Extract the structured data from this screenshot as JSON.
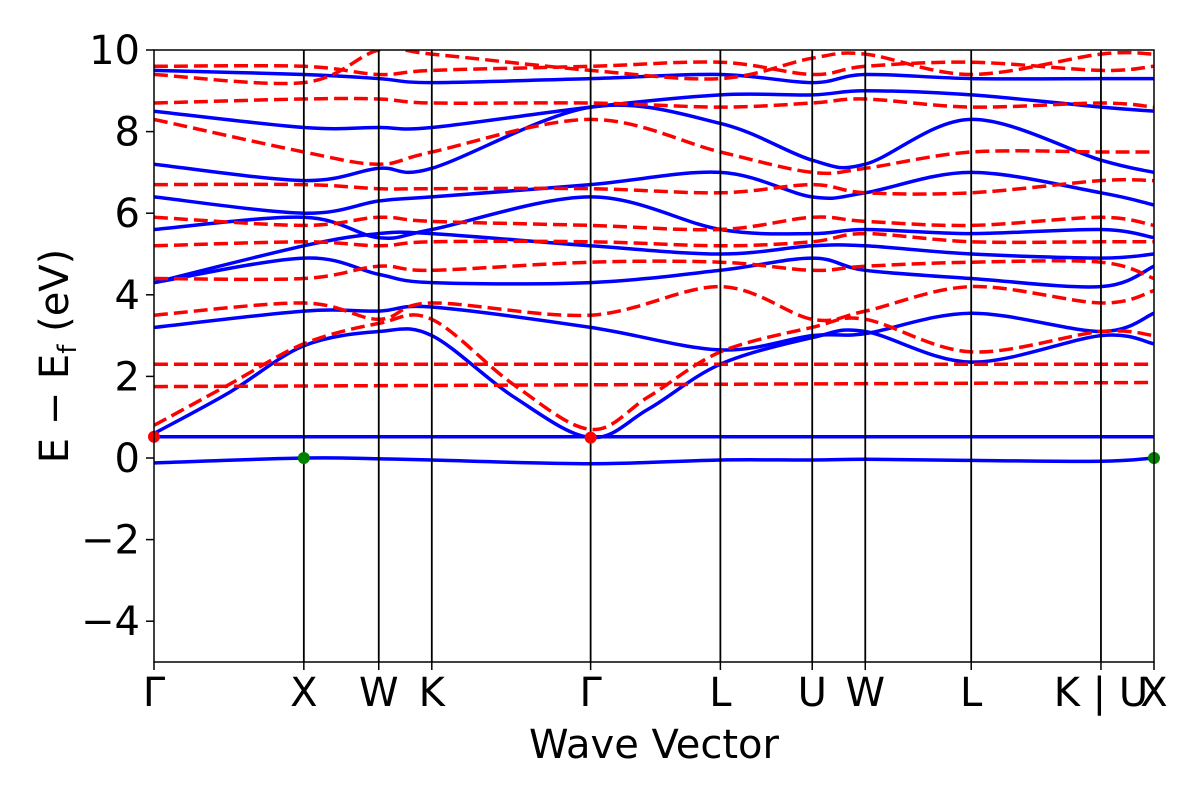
{
  "chart_data": {
    "type": "line",
    "xlabel": "Wave Vector",
    "ylabel": "E − E",
    "ylabel_sub": "f",
    "ylabel_unit": " (eV)",
    "ylim": [
      -5,
      10
    ],
    "yticks": [
      {
        "value": -4,
        "label": "−4"
      },
      {
        "value": -2,
        "label": "−2"
      },
      {
        "value": 0,
        "label": "0"
      },
      {
        "value": 2,
        "label": "2"
      },
      {
        "value": 4,
        "label": "4"
      },
      {
        "value": 6,
        "label": "6"
      },
      {
        "value": 8,
        "label": "8"
      },
      {
        "value": 10,
        "label": "10"
      }
    ],
    "kpoints": [
      {
        "label": "Γ",
        "x": 0.0
      },
      {
        "label": "X",
        "x": 1.0
      },
      {
        "label": "W",
        "x": 1.5
      },
      {
        "label": "K",
        "x": 1.854
      },
      {
        "label": "Γ",
        "x": 2.914
      },
      {
        "label": "L",
        "x": 3.78
      },
      {
        "label": "U",
        "x": 4.393
      },
      {
        "label": "W",
        "x": 4.747
      },
      {
        "label": "L",
        "x": 5.454
      },
      {
        "label": "K | U",
        "x": 6.32
      },
      {
        "label": "X",
        "x": 6.674
      }
    ],
    "xlim": [
      0,
      6.674
    ],
    "colors": {
      "spin_up": "#0000ff",
      "spin_down": "#ff0000",
      "vbm": "#008000",
      "cbm": "#ff0000",
      "kline": "#000000"
    },
    "series": [
      {
        "style": "solid",
        "color": "#0000ff",
        "points": [
          [
            0,
            -0.12
          ],
          [
            1.0,
            0.0
          ],
          [
            1.5,
            -0.02
          ],
          [
            1.854,
            -0.05
          ],
          [
            2.914,
            -0.14
          ],
          [
            3.78,
            -0.05
          ],
          [
            4.393,
            -0.05
          ],
          [
            4.747,
            -0.03
          ],
          [
            5.454,
            -0.06
          ],
          [
            6.32,
            -0.08
          ],
          [
            6.674,
            0.0
          ]
        ]
      },
      {
        "style": "solid",
        "color": "#0000ff",
        "points": [
          [
            0,
            0.52
          ],
          [
            6.674,
            0.52
          ]
        ]
      },
      {
        "style": "solid",
        "color": "#0000ff",
        "points": [
          [
            0,
            0.6
          ],
          [
            0.5,
            1.6
          ],
          [
            1.0,
            2.75
          ],
          [
            1.5,
            3.1
          ],
          [
            1.854,
            3.0
          ],
          [
            2.4,
            1.5
          ],
          [
            2.914,
            0.5
          ],
          [
            3.3,
            1.2
          ],
          [
            3.78,
            2.3
          ],
          [
            4.393,
            2.95
          ],
          [
            4.747,
            3.1
          ],
          [
            5.454,
            2.35
          ],
          [
            6.32,
            3.0
          ],
          [
            6.674,
            2.8
          ]
        ]
      },
      {
        "style": "solid",
        "color": "#0000ff",
        "points": [
          [
            0,
            3.2
          ],
          [
            1.0,
            3.6
          ],
          [
            1.5,
            3.6
          ],
          [
            1.854,
            3.7
          ],
          [
            2.914,
            3.2
          ],
          [
            3.78,
            2.65
          ],
          [
            4.393,
            3.0
          ],
          [
            4.747,
            3.05
          ],
          [
            5.454,
            3.55
          ],
          [
            6.32,
            3.1
          ],
          [
            6.674,
            3.55
          ]
        ]
      },
      {
        "style": "solid",
        "color": "#0000ff",
        "points": [
          [
            0,
            4.3
          ],
          [
            1.0,
            4.9
          ],
          [
            1.5,
            4.5
          ],
          [
            1.854,
            4.3
          ],
          [
            2.914,
            4.3
          ],
          [
            3.78,
            4.6
          ],
          [
            4.393,
            4.9
          ],
          [
            4.747,
            4.6
          ],
          [
            5.454,
            4.4
          ],
          [
            6.32,
            4.2
          ],
          [
            6.674,
            4.7
          ]
        ]
      },
      {
        "style": "solid",
        "color": "#0000ff",
        "points": [
          [
            0,
            4.3
          ],
          [
            1.0,
            5.2
          ],
          [
            1.5,
            5.5
          ],
          [
            1.854,
            5.5
          ],
          [
            2.914,
            5.2
          ],
          [
            3.78,
            5.0
          ],
          [
            4.393,
            5.2
          ],
          [
            4.747,
            5.2
          ],
          [
            5.454,
            5.0
          ],
          [
            6.32,
            4.9
          ],
          [
            6.674,
            5.0
          ]
        ]
      },
      {
        "style": "solid",
        "color": "#0000ff",
        "points": [
          [
            0,
            5.6
          ],
          [
            1.0,
            5.9
          ],
          [
            1.5,
            5.4
          ],
          [
            1.854,
            5.6
          ],
          [
            2.914,
            6.4
          ],
          [
            3.78,
            5.6
          ],
          [
            4.393,
            5.5
          ],
          [
            4.747,
            5.6
          ],
          [
            5.454,
            5.5
          ],
          [
            6.32,
            5.6
          ],
          [
            6.674,
            5.4
          ]
        ]
      },
      {
        "style": "solid",
        "color": "#0000ff",
        "points": [
          [
            0,
            6.4
          ],
          [
            1.0,
            6.0
          ],
          [
            1.5,
            6.3
          ],
          [
            1.854,
            6.4
          ],
          [
            2.914,
            6.7
          ],
          [
            3.78,
            7.0
          ],
          [
            4.393,
            6.4
          ],
          [
            4.747,
            6.5
          ],
          [
            5.454,
            7.0
          ],
          [
            6.32,
            6.5
          ],
          [
            6.674,
            6.2
          ]
        ]
      },
      {
        "style": "solid",
        "color": "#0000ff",
        "points": [
          [
            0,
            7.2
          ],
          [
            1.0,
            6.8
          ],
          [
            1.5,
            7.1
          ],
          [
            1.854,
            7.1
          ],
          [
            2.914,
            8.6
          ],
          [
            3.78,
            8.2
          ],
          [
            4.393,
            7.3
          ],
          [
            4.747,
            7.2
          ],
          [
            5.454,
            8.3
          ],
          [
            6.32,
            7.3
          ],
          [
            6.674,
            7.0
          ]
        ]
      },
      {
        "style": "solid",
        "color": "#0000ff",
        "points": [
          [
            0,
            8.5
          ],
          [
            1.0,
            8.1
          ],
          [
            1.5,
            8.1
          ],
          [
            1.854,
            8.1
          ],
          [
            2.914,
            8.6
          ],
          [
            3.78,
            8.9
          ],
          [
            4.393,
            8.9
          ],
          [
            4.747,
            9.0
          ],
          [
            5.454,
            8.9
          ],
          [
            6.32,
            8.6
          ],
          [
            6.674,
            8.5
          ]
        ]
      },
      {
        "style": "solid",
        "color": "#0000ff",
        "points": [
          [
            0,
            9.5
          ],
          [
            1.0,
            9.4
          ],
          [
            1.5,
            9.3
          ],
          [
            1.854,
            9.2
          ],
          [
            2.914,
            9.3
          ],
          [
            3.78,
            9.4
          ],
          [
            4.393,
            9.2
          ],
          [
            4.747,
            9.4
          ],
          [
            5.454,
            9.3
          ],
          [
            6.32,
            9.3
          ],
          [
            6.674,
            9.3
          ]
        ]
      },
      {
        "style": "dashed",
        "color": "#ff0000",
        "points": [
          [
            0,
            0.8
          ],
          [
            0.5,
            1.8
          ],
          [
            1.0,
            2.8
          ],
          [
            1.5,
            3.3
          ],
          [
            1.854,
            3.4
          ],
          [
            2.4,
            1.8
          ],
          [
            2.914,
            0.7
          ],
          [
            3.3,
            1.5
          ],
          [
            3.78,
            2.6
          ],
          [
            4.393,
            3.2
          ],
          [
            4.747,
            3.4
          ],
          [
            5.454,
            2.6
          ],
          [
            6.32,
            3.1
          ],
          [
            6.674,
            3.0
          ]
        ]
      },
      {
        "style": "dashed",
        "color": "#ff0000",
        "points": [
          [
            0,
            1.75
          ],
          [
            6.674,
            1.85
          ]
        ]
      },
      {
        "style": "dashed",
        "color": "#ff0000",
        "points": [
          [
            0,
            2.3
          ],
          [
            6.674,
            2.3
          ]
        ]
      },
      {
        "style": "dashed",
        "color": "#ff0000",
        "points": [
          [
            0,
            3.5
          ],
          [
            1.0,
            3.8
          ],
          [
            1.5,
            3.4
          ],
          [
            1.854,
            3.8
          ],
          [
            2.914,
            3.5
          ],
          [
            3.78,
            4.2
          ],
          [
            4.393,
            3.4
          ],
          [
            4.747,
            3.6
          ],
          [
            5.454,
            4.2
          ],
          [
            6.32,
            3.8
          ],
          [
            6.674,
            4.1
          ]
        ]
      },
      {
        "style": "dashed",
        "color": "#ff0000",
        "points": [
          [
            0,
            4.4
          ],
          [
            1.0,
            4.4
          ],
          [
            1.5,
            4.7
          ],
          [
            1.854,
            4.6
          ],
          [
            2.914,
            4.8
          ],
          [
            3.78,
            4.8
          ],
          [
            4.393,
            4.6
          ],
          [
            4.747,
            4.7
          ],
          [
            5.454,
            4.8
          ],
          [
            6.32,
            4.8
          ],
          [
            6.674,
            4.4
          ]
        ]
      },
      {
        "style": "dashed",
        "color": "#ff0000",
        "points": [
          [
            0,
            5.2
          ],
          [
            1.0,
            5.3
          ],
          [
            1.5,
            5.2
          ],
          [
            1.854,
            5.3
          ],
          [
            2.914,
            5.3
          ],
          [
            3.78,
            5.2
          ],
          [
            4.393,
            5.3
          ],
          [
            4.747,
            5.5
          ],
          [
            5.454,
            5.3
          ],
          [
            6.32,
            5.3
          ],
          [
            6.674,
            5.3
          ]
        ]
      },
      {
        "style": "dashed",
        "color": "#ff0000",
        "points": [
          [
            0,
            5.9
          ],
          [
            1.0,
            5.7
          ],
          [
            1.5,
            5.9
          ],
          [
            1.854,
            5.8
          ],
          [
            2.914,
            5.7
          ],
          [
            3.78,
            5.6
          ],
          [
            4.393,
            5.9
          ],
          [
            4.747,
            5.8
          ],
          [
            5.454,
            5.7
          ],
          [
            6.32,
            5.9
          ],
          [
            6.674,
            5.7
          ]
        ]
      },
      {
        "style": "dashed",
        "color": "#ff0000",
        "points": [
          [
            0,
            6.7
          ],
          [
            1.0,
            6.7
          ],
          [
            1.5,
            6.6
          ],
          [
            1.854,
            6.6
          ],
          [
            2.914,
            6.6
          ],
          [
            3.78,
            6.5
          ],
          [
            4.393,
            6.7
          ],
          [
            4.747,
            6.5
          ],
          [
            5.454,
            6.5
          ],
          [
            6.32,
            6.8
          ],
          [
            6.674,
            6.8
          ]
        ]
      },
      {
        "style": "dashed",
        "color": "#ff0000",
        "points": [
          [
            0,
            8.3
          ],
          [
            1.0,
            7.5
          ],
          [
            1.5,
            7.2
          ],
          [
            1.854,
            7.5
          ],
          [
            2.914,
            8.3
          ],
          [
            3.78,
            7.5
          ],
          [
            4.393,
            7.0
          ],
          [
            4.747,
            7.1
          ],
          [
            5.454,
            7.5
          ],
          [
            6.32,
            7.5
          ],
          [
            6.674,
            7.5
          ]
        ]
      },
      {
        "style": "dashed",
        "color": "#ff0000",
        "points": [
          [
            0,
            8.7
          ],
          [
            1.0,
            8.8
          ],
          [
            1.5,
            8.8
          ],
          [
            1.854,
            8.7
          ],
          [
            2.914,
            8.7
          ],
          [
            3.78,
            8.6
          ],
          [
            4.393,
            8.7
          ],
          [
            4.747,
            8.8
          ],
          [
            5.454,
            8.6
          ],
          [
            6.32,
            8.7
          ],
          [
            6.674,
            8.6
          ]
        ]
      },
      {
        "style": "dashed",
        "color": "#ff0000",
        "points": [
          [
            0,
            9.6
          ],
          [
            1.0,
            9.6
          ],
          [
            1.5,
            9.4
          ],
          [
            1.854,
            9.5
          ],
          [
            2.914,
            9.6
          ],
          [
            3.78,
            9.7
          ],
          [
            4.393,
            9.4
          ],
          [
            4.747,
            9.6
          ],
          [
            5.454,
            9.7
          ],
          [
            6.32,
            9.5
          ],
          [
            6.674,
            9.6
          ]
        ]
      },
      {
        "style": "dashed",
        "color": "#ff0000",
        "points": [
          [
            0,
            9.4
          ],
          [
            1.0,
            9.2
          ],
          [
            1.5,
            10.0
          ],
          [
            1.854,
            9.9
          ],
          [
            2.914,
            9.5
          ],
          [
            3.78,
            9.3
          ],
          [
            4.393,
            9.8
          ],
          [
            4.747,
            9.9
          ],
          [
            5.454,
            9.4
          ],
          [
            6.32,
            9.9
          ],
          [
            6.674,
            9.9
          ]
        ]
      }
    ],
    "markers": [
      {
        "kind": "cbm",
        "x": 0.0,
        "y": 0.52,
        "color": "#ff0000"
      },
      {
        "kind": "cbm",
        "x": 2.914,
        "y": 0.5,
        "color": "#ff0000"
      },
      {
        "kind": "vbm",
        "x": 1.0,
        "y": 0.0,
        "color": "#008000"
      },
      {
        "kind": "vbm",
        "x": 6.674,
        "y": 0.0,
        "color": "#008000"
      }
    ]
  }
}
